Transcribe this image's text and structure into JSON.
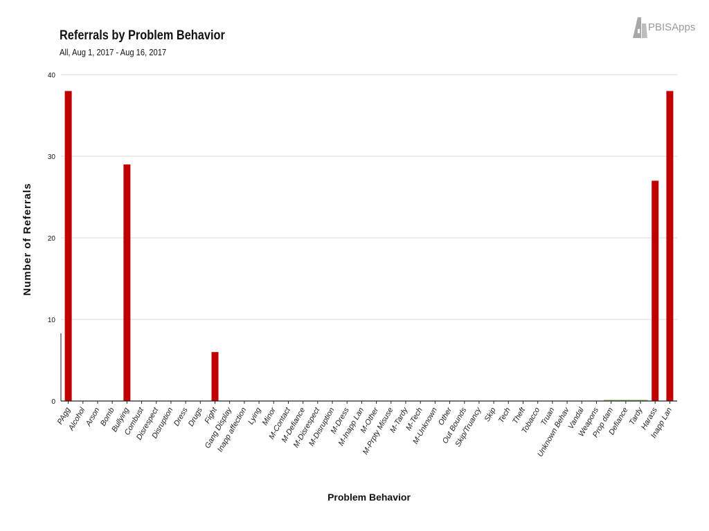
{
  "header": {
    "title": "Referrals by Problem Behavior",
    "subtitle": "All, Aug 1, 2017 - Aug 16, 2017"
  },
  "logo": {
    "text": "PBISApps",
    "icon": "pbis-building-icon"
  },
  "colors": {
    "bar": "#c00000",
    "grid": "#d9d9d9",
    "axis": "#222222",
    "baseline_accent": "#5a9a3a"
  },
  "chart_data": {
    "type": "bar",
    "title": "Referrals by Problem Behavior",
    "subtitle": "All, Aug 1, 2017 - Aug 16, 2017",
    "xlabel": "Problem Behavior",
    "ylabel": "Number of Referrals",
    "ylim": [
      0,
      40
    ],
    "yticks": [
      0,
      10,
      20,
      30,
      40
    ],
    "grid": true,
    "legend": "none",
    "categories": [
      "PAgg",
      "Alcohol",
      "Arson",
      "Bomb",
      "Bullying",
      "Combust",
      "Disrespect",
      "Disruption",
      "Dress",
      "Drugs",
      "Fight",
      "Gang Display",
      "Inapp affection",
      "Lying",
      "Minor",
      "M-Contact",
      "M-Defiance",
      "M-Disrespect",
      "M-Disruption",
      "M-Dress",
      "M-Inapp Lan",
      "M-Other",
      "M-Prpty Misuse",
      "M-Tardy",
      "M-Tech",
      "M-Unknown",
      "Other",
      "Out Bounds",
      "Skip/Truancy",
      "Skip",
      "Tech",
      "Theft",
      "Tobacco",
      "Truan",
      "Unknown Behav",
      "Vandal",
      "Weapons",
      "Prop dam",
      "Defiance",
      "Tardy",
      "Harass",
      "Inapp Lan"
    ],
    "values": [
      38,
      0,
      0,
      0,
      29,
      0,
      0,
      0,
      0,
      0,
      6,
      0,
      0,
      0,
      0,
      0,
      0,
      0,
      0,
      0,
      0,
      0,
      0,
      0,
      0,
      0,
      0,
      0,
      0,
      0,
      0,
      0,
      0,
      0,
      0,
      0,
      0,
      0,
      0,
      0,
      27,
      38
    ]
  }
}
